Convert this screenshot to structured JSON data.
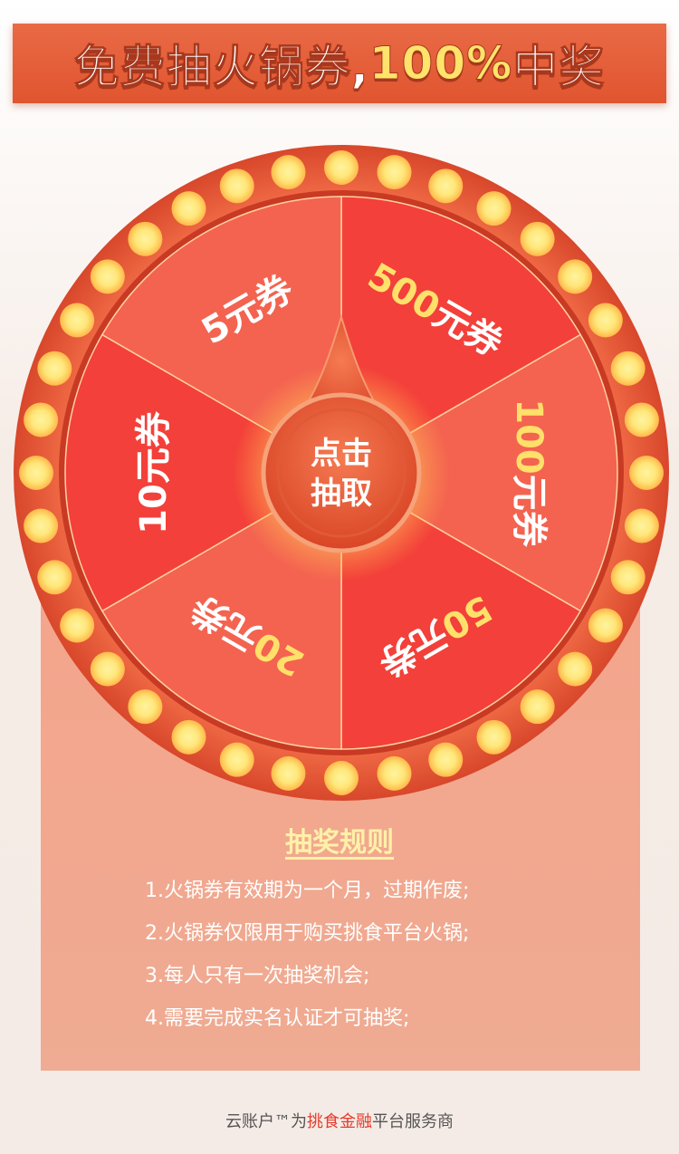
{
  "banner": {
    "part1": "免费抽火锅券,",
    "part2": "100%",
    "part3": "中奖"
  },
  "wheel": {
    "center_label_line1": "点击",
    "center_label_line2": "抽取",
    "prizes": [
      {
        "label": "500元券",
        "highlight": "500"
      },
      {
        "label": "100元券",
        "highlight": "100"
      },
      {
        "label": "50元券",
        "highlight": "50"
      },
      {
        "label": "20元券",
        "highlight": "20"
      },
      {
        "label": "10元券",
        "highlight": ""
      },
      {
        "label": "5元券",
        "highlight": ""
      }
    ],
    "colors": {
      "slice_dark": "#f3403a",
      "slice_light": "#f46350",
      "rim": "#e8573a",
      "bulb": "#ffe77a",
      "highlight_text": "#ffe06a"
    }
  },
  "rules": {
    "title": "抽奖规则",
    "items": [
      "1.火锅券有效期为一个月，过期作废;",
      "2.火锅券仅限用于购买挑食平台火锅;",
      "3.每人只有一次抽奖机会;",
      "4.需要完成实名认证才可抽奖;"
    ]
  },
  "footer": {
    "prefix": "云账户™为",
    "highlight": "挑食金融",
    "suffix": "平台服务商"
  }
}
